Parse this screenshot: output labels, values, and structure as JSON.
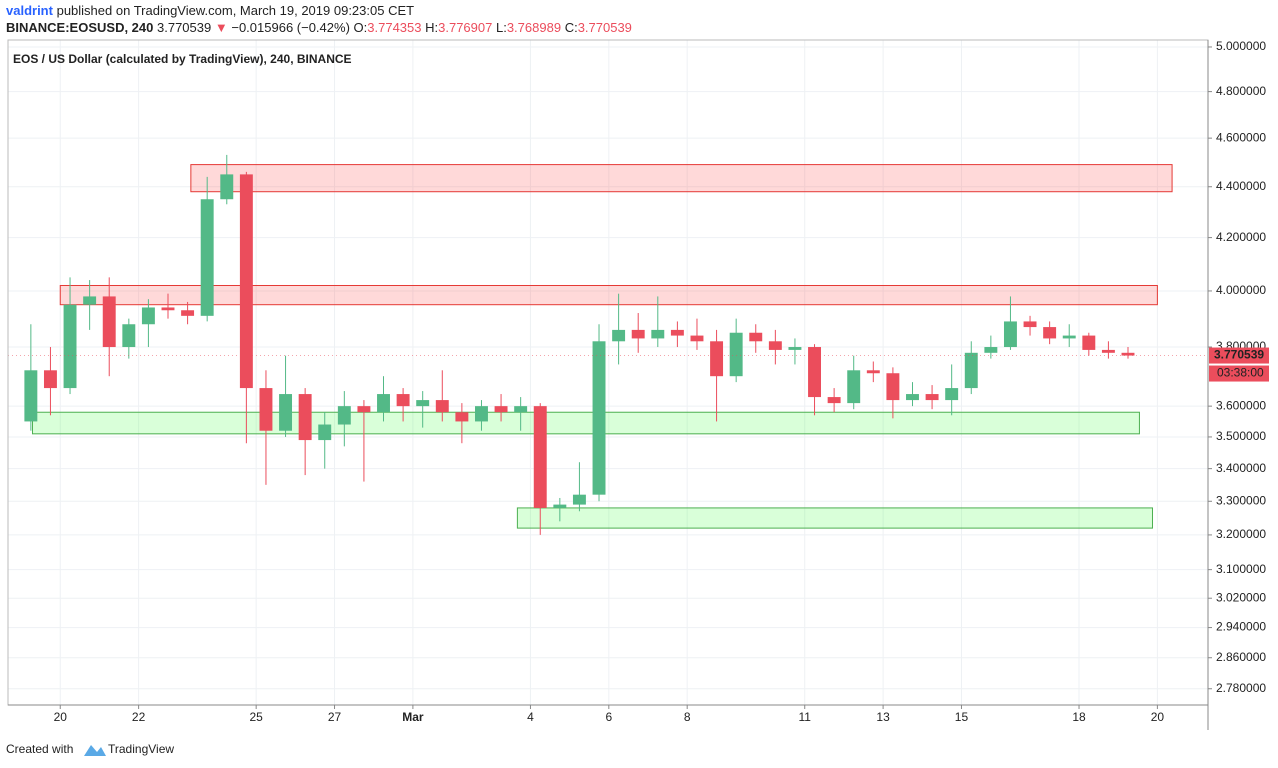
{
  "header": {
    "author": "valdrint",
    "published": "published on TradingView.com, March 19, 2019 09:23:05 CET",
    "symbol": "BINANCE:EOSUSD, 240",
    "last": 3.770539,
    "arrow": "▼",
    "change": "−0.015966 (−0.42%)",
    "open_label": "O:",
    "open": 3.774353,
    "high_label": "H:",
    "high": 3.776907,
    "low_label": "L:",
    "low": 3.768989,
    "close_label": "C:",
    "close": 3.770539
  },
  "footer": {
    "created": "Created with",
    "brand": "TradingView"
  },
  "chart_data": {
    "type": "candlestick",
    "title": "EOS / US Dollar (calculated by TradingView), 240, BINANCE",
    "x": [
      "2019-02-19T00:00",
      "2019-02-19T12:00",
      "2019-02-20T00:00",
      "2019-02-20T12:00",
      "2019-02-21T00:00",
      "2019-02-21T12:00",
      "2019-02-22T00:00",
      "2019-02-22T12:00",
      "2019-02-23T00:00",
      "2019-02-23T12:00",
      "2019-02-24T00:00",
      "2019-02-24T12:00",
      "2019-02-25T00:00",
      "2019-02-25T12:00",
      "2019-02-26T00:00",
      "2019-02-26T12:00",
      "2019-02-27T00:00",
      "2019-02-27T12:00",
      "2019-02-28T00:00",
      "2019-02-28T12:00",
      "2019-03-01T00:00",
      "2019-03-01T12:00",
      "2019-03-02T00:00",
      "2019-03-02T12:00",
      "2019-03-03T00:00",
      "2019-03-03T12:00",
      "2019-03-04T00:00",
      "2019-03-04T12:00",
      "2019-03-05T00:00",
      "2019-03-05T12:00",
      "2019-03-06T00:00",
      "2019-03-06T12:00",
      "2019-03-07T00:00",
      "2019-03-07T12:00",
      "2019-03-08T00:00",
      "2019-03-08T12:00",
      "2019-03-09T00:00",
      "2019-03-09T12:00",
      "2019-03-10T00:00",
      "2019-03-10T12:00",
      "2019-03-11T00:00",
      "2019-03-11T12:00",
      "2019-03-12T00:00",
      "2019-03-12T12:00",
      "2019-03-13T00:00",
      "2019-03-13T12:00",
      "2019-03-14T00:00",
      "2019-03-14T12:00",
      "2019-03-15T00:00",
      "2019-03-15T12:00",
      "2019-03-16T00:00",
      "2019-03-16T12:00",
      "2019-03-17T00:00",
      "2019-03-17T12:00",
      "2019-03-18T00:00",
      "2019-03-18T12:00",
      "2019-03-19T00:00"
    ],
    "open": [
      3.55,
      3.72,
      3.66,
      3.95,
      3.98,
      3.8,
      3.88,
      3.94,
      3.93,
      3.91,
      4.35,
      4.45,
      3.66,
      3.52,
      3.64,
      3.49,
      3.54,
      3.6,
      3.58,
      3.64,
      3.6,
      3.62,
      3.58,
      3.55,
      3.6,
      3.58,
      3.6,
      3.28,
      3.29,
      3.32,
      3.82,
      3.86,
      3.83,
      3.86,
      3.84,
      3.82,
      3.7,
      3.85,
      3.82,
      3.79,
      3.8,
      3.63,
      3.61,
      3.72,
      3.71,
      3.62,
      3.64,
      3.62,
      3.66,
      3.78,
      3.8,
      3.89,
      3.87,
      3.83,
      3.84,
      3.79,
      3.78
    ],
    "high": [
      3.88,
      3.8,
      4.05,
      4.04,
      4.05,
      3.9,
      3.97,
      3.99,
      3.96,
      4.44,
      4.53,
      4.46,
      3.72,
      3.77,
      3.66,
      3.58,
      3.65,
      3.62,
      3.7,
      3.66,
      3.65,
      3.72,
      3.61,
      3.62,
      3.64,
      3.63,
      3.61,
      3.31,
      3.42,
      3.88,
      3.99,
      3.92,
      3.98,
      3.89,
      3.9,
      3.86,
      3.9,
      3.88,
      3.86,
      3.83,
      3.81,
      3.66,
      3.77,
      3.75,
      3.73,
      3.68,
      3.67,
      3.74,
      3.82,
      3.84,
      3.98,
      3.91,
      3.89,
      3.88,
      3.85,
      3.82,
      3.8
    ],
    "low": [
      3.52,
      3.57,
      3.64,
      3.86,
      3.7,
      3.76,
      3.8,
      3.9,
      3.88,
      3.89,
      4.33,
      3.48,
      3.35,
      3.5,
      3.38,
      3.4,
      3.47,
      3.36,
      3.55,
      3.55,
      3.53,
      3.55,
      3.48,
      3.52,
      3.55,
      3.52,
      3.2,
      3.24,
      3.27,
      3.3,
      3.74,
      3.78,
      3.8,
      3.8,
      3.79,
      3.55,
      3.68,
      3.78,
      3.74,
      3.74,
      3.57,
      3.58,
      3.59,
      3.68,
      3.56,
      3.6,
      3.59,
      3.57,
      3.64,
      3.76,
      3.79,
      3.84,
      3.81,
      3.8,
      3.77,
      3.76,
      3.76
    ],
    "close": [
      3.72,
      3.66,
      3.95,
      3.98,
      3.8,
      3.88,
      3.94,
      3.93,
      3.91,
      4.35,
      4.45,
      3.66,
      3.52,
      3.64,
      3.49,
      3.54,
      3.6,
      3.58,
      3.64,
      3.6,
      3.62,
      3.58,
      3.55,
      3.6,
      3.58,
      3.6,
      3.28,
      3.29,
      3.32,
      3.82,
      3.86,
      3.83,
      3.86,
      3.84,
      3.82,
      3.7,
      3.85,
      3.82,
      3.79,
      3.8,
      3.63,
      3.61,
      3.72,
      3.71,
      3.62,
      3.64,
      3.62,
      3.66,
      3.78,
      3.8,
      3.89,
      3.87,
      3.83,
      3.84,
      3.79,
      3.78,
      3.770539
    ],
    "up_color": "#53b987",
    "down_color": "#eb4d5c",
    "countdown": "03:38:00",
    "log_scale": true,
    "grid": true,
    "ylim": [
      2.739,
      5.032
    ],
    "yticks": [
      {
        "value": 5.0,
        "label": "5.000000"
      },
      {
        "value": 4.8,
        "label": "4.800000"
      },
      {
        "value": 4.6,
        "label": "4.600000"
      },
      {
        "value": 4.4,
        "label": "4.400000"
      },
      {
        "value": 4.2,
        "label": "4.200000"
      },
      {
        "value": 4.0,
        "label": "4.000000"
      },
      {
        "value": 3.8,
        "label": "3.800000"
      },
      {
        "value": 3.6,
        "label": "3.600000"
      },
      {
        "value": 3.5,
        "label": "3.500000"
      },
      {
        "value": 3.4,
        "label": "3.400000"
      },
      {
        "value": 3.3,
        "label": "3.300000"
      },
      {
        "value": 3.2,
        "label": "3.200000"
      },
      {
        "value": 3.1,
        "label": "3.100000"
      },
      {
        "value": 3.02,
        "label": "3.020000"
      },
      {
        "value": 2.94,
        "label": "2.940000"
      },
      {
        "value": 2.86,
        "label": "2.860000"
      },
      {
        "value": 2.78,
        "label": "2.780000"
      }
    ],
    "xlim": [
      "2019-02-18T16:00",
      "2019-03-21T07:00"
    ],
    "xticks": [
      {
        "value": "2019-02-20",
        "label": "20"
      },
      {
        "value": "2019-02-22",
        "label": "22"
      },
      {
        "value": "2019-02-25",
        "label": "25"
      },
      {
        "value": "2019-02-27",
        "label": "27"
      },
      {
        "value": "2019-03-01",
        "label": "Mar"
      },
      {
        "value": "2019-03-04",
        "label": "4"
      },
      {
        "value": "2019-03-06",
        "label": "6"
      },
      {
        "value": "2019-03-08",
        "label": "8"
      },
      {
        "value": "2019-03-11",
        "label": "11"
      },
      {
        "value": "2019-03-13",
        "label": "13"
      },
      {
        "value": "2019-03-15",
        "label": "15"
      },
      {
        "value": "2019-03-18",
        "label": "18"
      },
      {
        "value": "2019-03-20",
        "label": "20"
      }
    ],
    "zones": [
      {
        "x": [
          "2019-02-23T08:00",
          "2019-03-20T09:00"
        ],
        "y": [
          4.38,
          4.49
        ],
        "fill": "rgba(255,80,80,0.22)",
        "stroke": "#e53935"
      },
      {
        "x": [
          "2019-02-20T00:00",
          "2019-03-20T00:00"
        ],
        "y": [
          3.95,
          4.02
        ],
        "fill": "rgba(255,80,80,0.22)",
        "stroke": "#e53935"
      },
      {
        "x": [
          "2019-02-19T07:00",
          "2019-03-19T13:00"
        ],
        "y": [
          3.51,
          3.58
        ],
        "fill": "rgba(80,255,80,0.22)",
        "stroke": "#4caf50"
      },
      {
        "x": [
          "2019-03-03T16:00",
          "2019-03-19T21:00"
        ],
        "y": [
          3.22,
          3.28
        ],
        "fill": "rgba(80,255,80,0.22)",
        "stroke": "#4caf50"
      }
    ]
  }
}
